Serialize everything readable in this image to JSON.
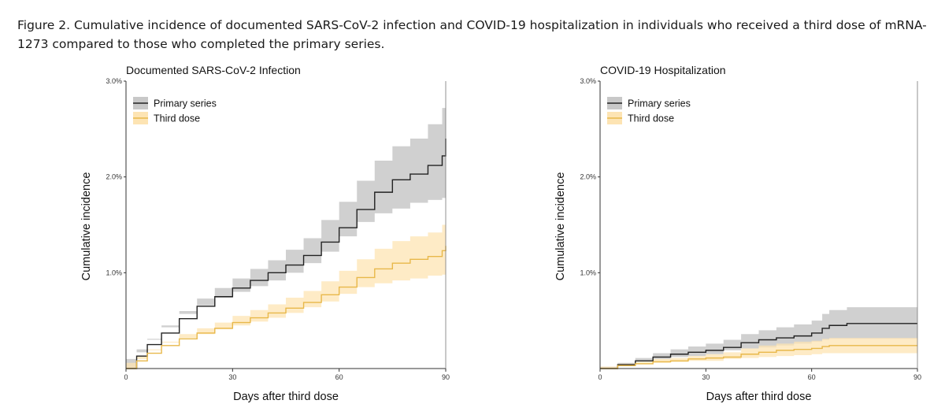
{
  "caption": "Figure 2. Cumulative incidence of documented SARS-CoV-2 infection and COVID-19 hospitalization in individuals who received a third dose of mRNA-1273 compared to those who completed the primary series.",
  "chart_data": [
    {
      "type": "line",
      "title": "Documented SARS-CoV-2 Infection",
      "xlabel": "Days after third dose",
      "ylabel": "Cumulative incidence",
      "xlim": [
        0,
        90
      ],
      "ylim": [
        0,
        3.0
      ],
      "xticks": [
        0,
        30,
        60,
        90
      ],
      "yticks": [
        1.0,
        2.0,
        3.0
      ],
      "ytick_labels": [
        "1.0%",
        "2.0%",
        "3.0%"
      ],
      "legend_position": "top-left",
      "series": [
        {
          "name": "Primary series",
          "line_color": "#222222",
          "band_color": "#c8c8c8",
          "x": [
            0,
            3,
            6,
            10,
            15,
            20,
            25,
            30,
            35,
            40,
            45,
            50,
            55,
            60,
            65,
            70,
            75,
            80,
            85,
            89,
            90
          ],
          "y": [
            0,
            0.13,
            0.25,
            0.37,
            0.52,
            0.65,
            0.75,
            0.84,
            0.92,
            1.0,
            1.08,
            1.18,
            1.32,
            1.47,
            1.66,
            1.84,
            1.97,
            2.03,
            2.12,
            2.22,
            2.4
          ],
          "lower": [
            0,
            0.1,
            0.2,
            0.31,
            0.45,
            0.57,
            0.66,
            0.74,
            0.8,
            0.86,
            0.92,
            1.0,
            1.1,
            1.22,
            1.38,
            1.53,
            1.62,
            1.67,
            1.73,
            1.76,
            1.78
          ],
          "upper": [
            0,
            0.17,
            0.3,
            0.43,
            0.6,
            0.73,
            0.84,
            0.94,
            1.04,
            1.13,
            1.24,
            1.36,
            1.55,
            1.74,
            1.96,
            2.17,
            2.32,
            2.4,
            2.55,
            2.72,
            2.72
          ]
        },
        {
          "name": "Third dose",
          "line_color": "#e8b84a",
          "band_color": "#fde4b3",
          "x": [
            0,
            3,
            6,
            10,
            15,
            20,
            25,
            30,
            35,
            40,
            45,
            50,
            55,
            60,
            65,
            70,
            75,
            80,
            85,
            89,
            90
          ],
          "y": [
            0,
            0.08,
            0.16,
            0.24,
            0.31,
            0.37,
            0.42,
            0.48,
            0.53,
            0.58,
            0.63,
            0.69,
            0.77,
            0.85,
            0.95,
            1.04,
            1.1,
            1.14,
            1.17,
            1.23,
            1.28
          ],
          "lower": [
            0,
            0.06,
            0.13,
            0.2,
            0.27,
            0.32,
            0.36,
            0.41,
            0.45,
            0.49,
            0.53,
            0.58,
            0.64,
            0.7,
            0.78,
            0.85,
            0.89,
            0.92,
            0.94,
            0.97,
            0.98
          ],
          "upper": [
            0,
            0.1,
            0.19,
            0.28,
            0.36,
            0.42,
            0.48,
            0.55,
            0.61,
            0.67,
            0.74,
            0.81,
            0.91,
            1.02,
            1.14,
            1.25,
            1.33,
            1.38,
            1.42,
            1.5,
            1.5
          ]
        }
      ]
    },
    {
      "type": "line",
      "title": "COVID-19 Hospitalization",
      "xlabel": "Days after third dose",
      "ylabel": "Cumulative incidence",
      "xlim": [
        0,
        90
      ],
      "ylim": [
        0,
        3.0
      ],
      "xticks": [
        0,
        30,
        60,
        90
      ],
      "yticks": [
        1.0,
        2.0,
        3.0
      ],
      "ytick_labels": [
        "1.0%",
        "2.0%",
        "3.0%"
      ],
      "legend_position": "top-left",
      "series": [
        {
          "name": "Primary series",
          "line_color": "#222222",
          "band_color": "#c8c8c8",
          "x": [
            0,
            5,
            10,
            15,
            20,
            25,
            30,
            35,
            40,
            45,
            50,
            55,
            60,
            63,
            65,
            70,
            90
          ],
          "y": [
            0,
            0.04,
            0.08,
            0.12,
            0.15,
            0.17,
            0.19,
            0.22,
            0.27,
            0.3,
            0.32,
            0.34,
            0.37,
            0.42,
            0.45,
            0.47,
            0.47
          ],
          "lower": [
            0,
            0.02,
            0.05,
            0.08,
            0.1,
            0.12,
            0.13,
            0.15,
            0.19,
            0.21,
            0.22,
            0.24,
            0.26,
            0.28,
            0.3,
            0.31,
            0.31
          ],
          "upper": [
            0,
            0.06,
            0.11,
            0.16,
            0.2,
            0.23,
            0.26,
            0.3,
            0.36,
            0.4,
            0.43,
            0.46,
            0.5,
            0.57,
            0.61,
            0.64,
            0.64
          ]
        },
        {
          "name": "Third dose",
          "line_color": "#e8b84a",
          "band_color": "#fde4b3",
          "x": [
            0,
            5,
            10,
            15,
            20,
            25,
            30,
            35,
            40,
            45,
            50,
            55,
            60,
            63,
            65,
            70,
            90
          ],
          "y": [
            0,
            0.03,
            0.05,
            0.07,
            0.08,
            0.1,
            0.11,
            0.12,
            0.15,
            0.17,
            0.19,
            0.2,
            0.21,
            0.23,
            0.24,
            0.24,
            0.24
          ],
          "lower": [
            0,
            0.02,
            0.03,
            0.05,
            0.06,
            0.07,
            0.08,
            0.08,
            0.1,
            0.11,
            0.12,
            0.13,
            0.14,
            0.15,
            0.16,
            0.16,
            0.16
          ],
          "upper": [
            0,
            0.05,
            0.07,
            0.1,
            0.11,
            0.13,
            0.15,
            0.17,
            0.21,
            0.24,
            0.26,
            0.28,
            0.29,
            0.31,
            0.32,
            0.32,
            0.32
          ]
        }
      ]
    }
  ]
}
